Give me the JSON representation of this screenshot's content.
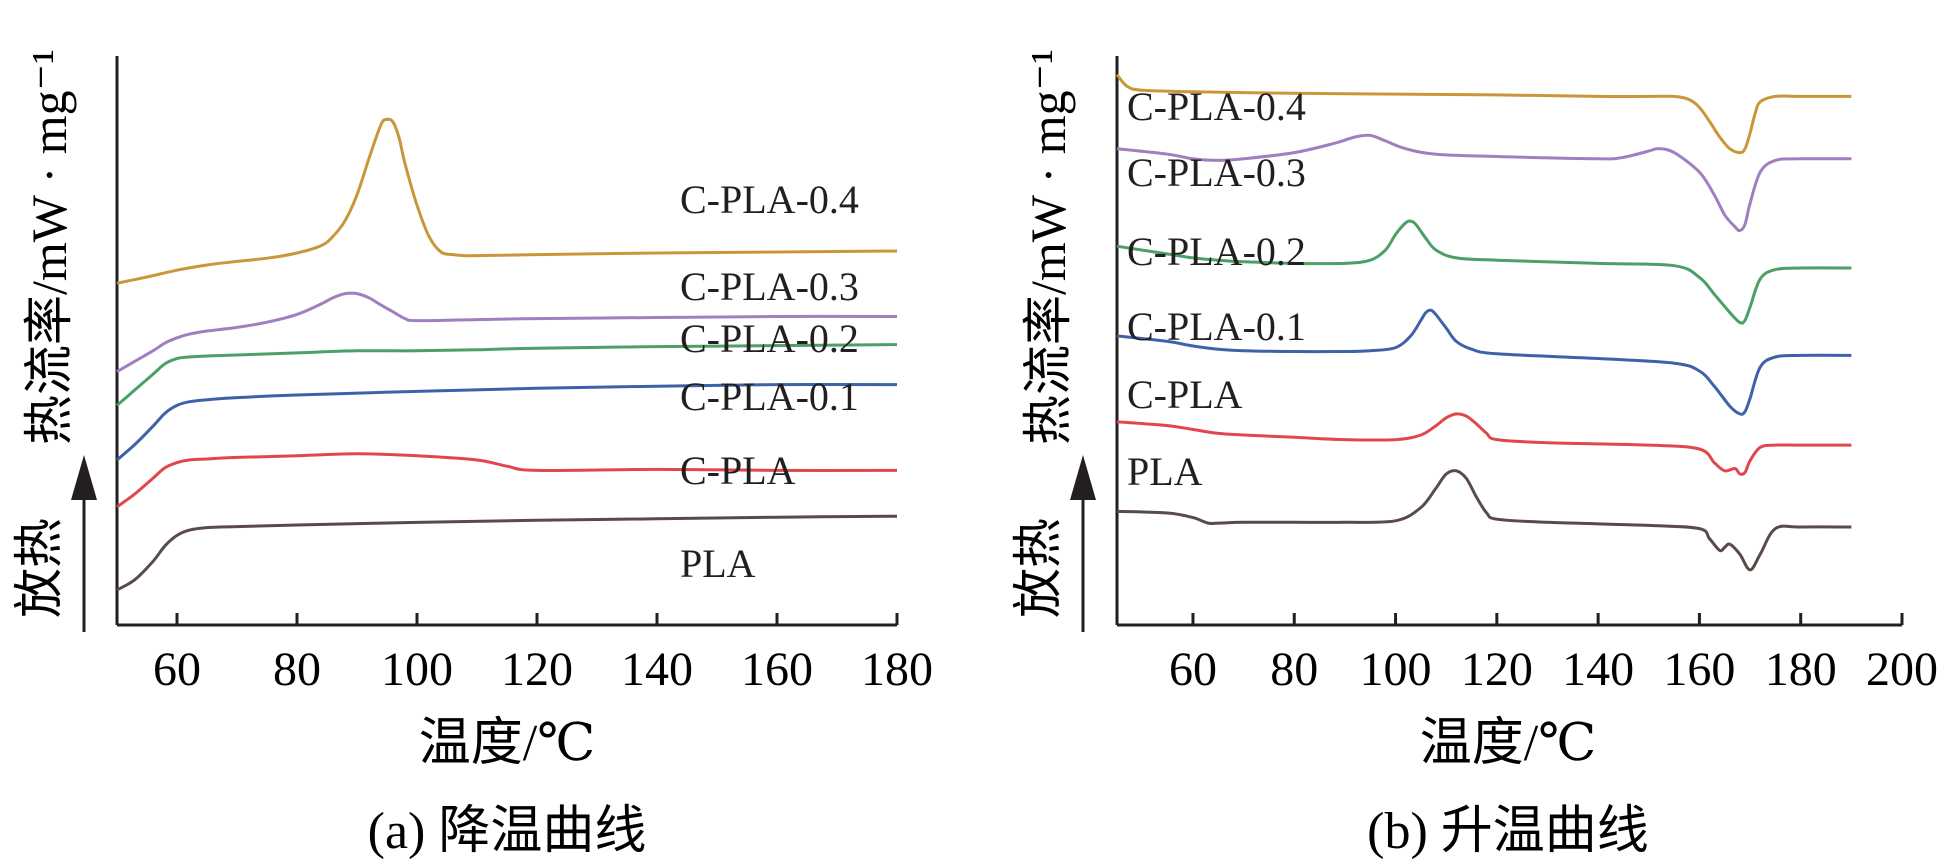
{
  "chart_data": [
    {
      "type": "line",
      "title": "(a) 降温曲线",
      "xlabel": "温度/℃",
      "ylabel": "热流率/mW · mg⁻¹",
      "yarrow_label": "放热",
      "xlim": [
        50,
        180
      ],
      "xticks": [
        60,
        80,
        100,
        120,
        140,
        160,
        180
      ],
      "xtick_labels": [
        "60",
        "80",
        "100",
        "120",
        "140",
        "160",
        "180"
      ],
      "yaxis_units": "arbitrary, stacked offsets",
      "series": [
        {
          "name": "PLA",
          "color": "#5a4a48",
          "x": [
            50,
            53,
            56,
            58,
            60,
            62,
            65,
            70,
            80,
            100,
            120,
            140,
            160,
            180
          ],
          "y": [
            0.0,
            0.2,
            0.55,
            0.85,
            1.05,
            1.15,
            1.2,
            1.22,
            1.25,
            1.3,
            1.34,
            1.37,
            1.4,
            1.42
          ]
        },
        {
          "name": "C-PLA",
          "color": "#e0474c",
          "x": [
            50,
            53,
            56,
            58,
            60,
            62,
            65,
            70,
            80,
            90,
            100,
            110,
            115,
            120,
            140,
            160,
            180
          ],
          "y": [
            1.6,
            1.85,
            2.15,
            2.35,
            2.45,
            2.5,
            2.52,
            2.55,
            2.58,
            2.62,
            2.58,
            2.5,
            2.38,
            2.3,
            2.32,
            2.3,
            2.3
          ]
        },
        {
          "name": "C-PLA-0.1",
          "color": "#3e62a8",
          "x": [
            50,
            53,
            56,
            58,
            60,
            62,
            65,
            70,
            80,
            100,
            120,
            140,
            160,
            180
          ],
          "y": [
            2.5,
            2.8,
            3.15,
            3.4,
            3.55,
            3.62,
            3.66,
            3.7,
            3.75,
            3.82,
            3.88,
            3.92,
            3.95,
            3.95
          ]
        },
        {
          "name": "C-PLA-0.2",
          "color": "#4aa066",
          "x": [
            50,
            53,
            56,
            58,
            60,
            62,
            65,
            70,
            80,
            90,
            100,
            110,
            120,
            140,
            160,
            180
          ],
          "y": [
            3.55,
            3.85,
            4.15,
            4.35,
            4.45,
            4.48,
            4.5,
            4.52,
            4.56,
            4.6,
            4.6,
            4.62,
            4.65,
            4.68,
            4.7,
            4.72
          ]
        },
        {
          "name": "C-PLA-0.3",
          "color": "#a07fc0",
          "x": [
            50,
            53,
            56,
            58,
            60,
            62,
            65,
            70,
            75,
            80,
            84,
            86,
            88,
            90,
            92,
            94,
            96,
            98,
            100,
            110,
            120,
            140,
            160,
            180
          ],
          "y": [
            4.2,
            4.4,
            4.6,
            4.75,
            4.85,
            4.92,
            4.98,
            5.05,
            5.15,
            5.3,
            5.5,
            5.62,
            5.7,
            5.7,
            5.62,
            5.48,
            5.35,
            5.22,
            5.18,
            5.2,
            5.22,
            5.24,
            5.26,
            5.26
          ]
        },
        {
          "name": "C-PLA-0.4",
          "color": "#c9963a",
          "x": [
            50,
            55,
            60,
            65,
            70,
            75,
            80,
            84,
            86,
            88,
            90,
            92,
            94,
            95,
            96,
            97,
            98,
            100,
            102,
            104,
            106,
            108,
            110,
            120,
            140,
            160,
            180
          ],
          "y": [
            5.9,
            6.02,
            6.15,
            6.25,
            6.32,
            6.38,
            6.48,
            6.62,
            6.8,
            7.1,
            7.6,
            8.3,
            8.95,
            9.05,
            9.0,
            8.7,
            8.2,
            7.4,
            6.8,
            6.5,
            6.45,
            6.43,
            6.43,
            6.45,
            6.48,
            6.5,
            6.52
          ]
        }
      ]
    },
    {
      "type": "line",
      "title": "(b) 升温曲线",
      "xlabel": "温度/℃",
      "ylabel": "热流率/mW · mg⁻¹",
      "yarrow_label": "放热",
      "xlim": [
        45,
        200
      ],
      "xticks": [
        60,
        80,
        100,
        120,
        140,
        160,
        180,
        200
      ],
      "xtick_labels": [
        "60",
        "80",
        "100",
        "120",
        "140",
        "160",
        "180",
        "200"
      ],
      "yaxis_units": "arbitrary, stacked offsets",
      "series": [
        {
          "name": "PLA",
          "color": "#5a4a48",
          "x": [
            45,
            55,
            60,
            63,
            65,
            70,
            80,
            90,
            100,
            105,
            108,
            110,
            112,
            114,
            116,
            118,
            120,
            130,
            150,
            160,
            162,
            164,
            165,
            166,
            168,
            170,
            172,
            175,
            180,
            190
          ],
          "y": [
            1.2,
            1.18,
            1.12,
            1.05,
            1.05,
            1.06,
            1.06,
            1.06,
            1.08,
            1.25,
            1.5,
            1.68,
            1.72,
            1.62,
            1.38,
            1.18,
            1.1,
            1.06,
            1.02,
            0.98,
            0.85,
            0.7,
            0.74,
            0.78,
            0.65,
            0.45,
            0.65,
            0.98,
            1.0,
            1.0
          ]
        },
        {
          "name": "C-PLA",
          "color": "#e0474c",
          "x": [
            45,
            55,
            60,
            65,
            70,
            80,
            90,
            100,
            105,
            108,
            110,
            112,
            114,
            116,
            118,
            120,
            130,
            150,
            160,
            163,
            165,
            167,
            168,
            169,
            170,
            172,
            175,
            180,
            190
          ],
          "y": [
            2.35,
            2.3,
            2.25,
            2.2,
            2.18,
            2.15,
            2.12,
            2.12,
            2.18,
            2.3,
            2.4,
            2.45,
            2.42,
            2.32,
            2.2,
            2.12,
            2.08,
            2.05,
            2.0,
            1.82,
            1.72,
            1.75,
            1.68,
            1.7,
            1.85,
            2.02,
            2.05,
            2.05,
            2.05
          ]
        },
        {
          "name": "C-PLA-0.1",
          "color": "#3e62a8",
          "x": [
            45,
            55,
            60,
            65,
            70,
            80,
            90,
            95,
            100,
            103,
            105,
            106,
            107,
            108,
            110,
            112,
            115,
            120,
            140,
            155,
            160,
            163,
            166,
            168,
            169,
            170,
            172,
            175,
            180,
            190
          ],
          "y": [
            3.45,
            3.38,
            3.32,
            3.28,
            3.26,
            3.25,
            3.25,
            3.26,
            3.3,
            3.45,
            3.65,
            3.75,
            3.78,
            3.72,
            3.55,
            3.38,
            3.28,
            3.22,
            3.16,
            3.1,
            3.0,
            2.8,
            2.55,
            2.45,
            2.48,
            2.65,
            3.05,
            3.18,
            3.2,
            3.2
          ]
        },
        {
          "name": "C-PLA-0.2",
          "color": "#4aa066",
          "x": [
            45,
            55,
            60,
            65,
            70,
            80,
            90,
            95,
            98,
            100,
            102,
            103,
            104,
            106,
            108,
            112,
            120,
            140,
            155,
            160,
            163,
            166,
            168,
            169,
            170,
            172,
            175,
            180,
            190
          ],
          "y": [
            4.6,
            4.5,
            4.45,
            4.42,
            4.4,
            4.38,
            4.38,
            4.42,
            4.55,
            4.75,
            4.9,
            4.92,
            4.88,
            4.7,
            4.55,
            4.45,
            4.42,
            4.38,
            4.35,
            4.2,
            3.98,
            3.75,
            3.62,
            3.65,
            3.82,
            4.18,
            4.3,
            4.32,
            4.32
          ]
        },
        {
          "name": "C-PLA-0.3",
          "color": "#a07fc0",
          "x": [
            45,
            55,
            60,
            65,
            70,
            80,
            88,
            92,
            95,
            98,
            102,
            108,
            120,
            140,
            145,
            150,
            152,
            155,
            160,
            163,
            165,
            167,
            168,
            169,
            170,
            172,
            175,
            180,
            190
          ],
          "y": [
            5.85,
            5.78,
            5.72,
            5.7,
            5.72,
            5.8,
            5.92,
            6.0,
            6.02,
            5.95,
            5.85,
            5.78,
            5.75,
            5.72,
            5.74,
            5.82,
            5.85,
            5.8,
            5.55,
            5.25,
            5.0,
            4.85,
            4.8,
            4.88,
            5.15,
            5.55,
            5.7,
            5.72,
            5.72
          ]
        },
        {
          "name": "C-PLA-0.4",
          "color": "#c9963a",
          "x": [
            45,
            47,
            50,
            60,
            80,
            100,
            120,
            140,
            150,
            155,
            158,
            160,
            162,
            164,
            166,
            168,
            169,
            170,
            171,
            172,
            175,
            180,
            190
          ],
          "y": [
            6.8,
            6.65,
            6.6,
            6.58,
            6.56,
            6.55,
            6.54,
            6.52,
            6.52,
            6.52,
            6.48,
            6.38,
            6.2,
            6.0,
            5.85,
            5.8,
            5.85,
            6.05,
            6.3,
            6.45,
            6.52,
            6.52,
            6.52
          ]
        }
      ]
    }
  ]
}
